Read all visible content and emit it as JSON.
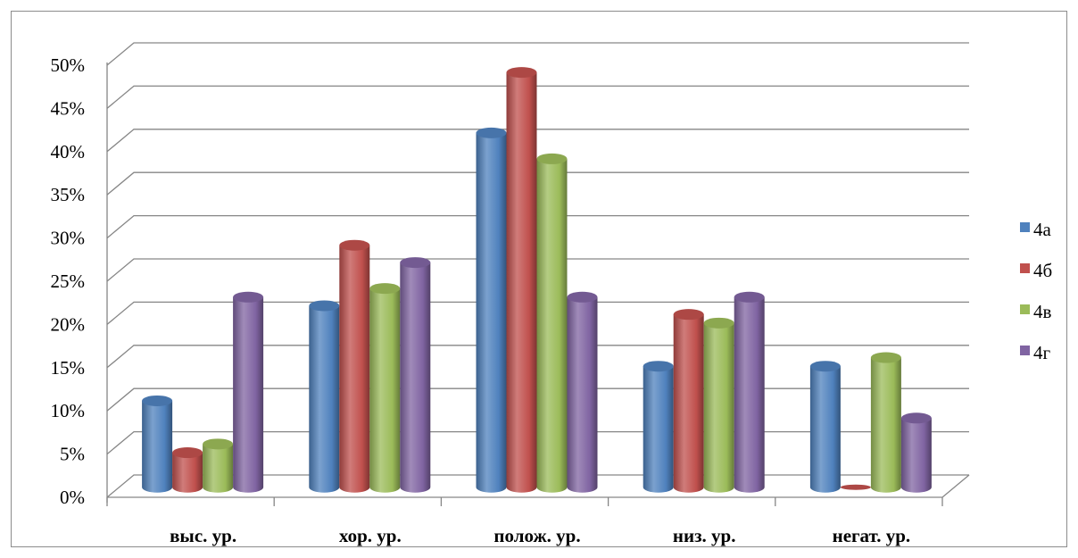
{
  "chart_data": {
    "type": "bar",
    "categories": [
      "выс. ур.",
      "хор. ур.",
      "полож. ур.",
      "низ. ур.",
      "негат. ур."
    ],
    "series": [
      {
        "name": "4а",
        "color": "#4F81BD",
        "values": [
          10,
          21,
          41,
          14,
          14
        ]
      },
      {
        "name": "4б",
        "color": "#C0504D",
        "values": [
          4,
          28,
          48,
          20,
          0
        ]
      },
      {
        "name": "4в",
        "color": "#9BBB59",
        "values": [
          5,
          23,
          38,
          19,
          15
        ]
      },
      {
        "name": "4г",
        "color": "#8064A2",
        "values": [
          22,
          26,
          22,
          22,
          8
        ]
      }
    ],
    "ylim": [
      0,
      50
    ],
    "yticks": [
      "0%",
      "5%",
      "10%",
      "15%",
      "20%",
      "25%",
      "30%",
      "35%",
      "40%",
      "45%",
      "50%"
    ],
    "grid": true,
    "legend_position": "right",
    "style": "3d-cylinder"
  }
}
